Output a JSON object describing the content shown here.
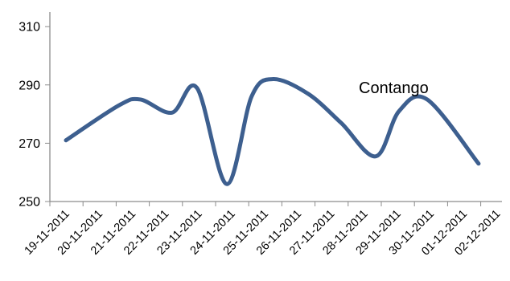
{
  "chart_data": {
    "type": "line",
    "title": "",
    "xlabel": "",
    "ylabel": "",
    "categories": [
      "19-11-2011",
      "20-11-2011",
      "21-11-2011",
      "22-11-2011",
      "23-11-2011",
      "24-11-2011",
      "25-11-2011",
      "26-11-2011",
      "27-11-2011",
      "28-11-2011",
      "29-11-2011",
      "30-11-2011",
      "01-12-2011",
      "02-12-2011"
    ],
    "ylim": [
      250,
      315
    ],
    "yticks": [
      250,
      270,
      290,
      310
    ],
    "grid": false,
    "legend": "none",
    "annotation": "Contango",
    "series_color": "#3d5f8f",
    "series": [
      {
        "points": [
          {
            "x": "19-11-2011",
            "y": 271
          },
          {
            "x": "21-11-2011",
            "y": 283
          },
          {
            "x": "21-11-2011",
            "y": 285
          },
          {
            "x": "22-11-2011",
            "y": 280.5
          },
          {
            "x": "23-11-2011",
            "y": 289
          },
          {
            "x": "24-11-2011",
            "y": 256
          },
          {
            "x": "25-11-2011",
            "y": 286
          },
          {
            "x": "26-11-2011",
            "y": 292
          },
          {
            "x": "27-11-2011",
            "y": 287
          },
          {
            "x": "28-11-2011",
            "y": 277
          },
          {
            "x": "29-11-2011",
            "y": 265.5
          },
          {
            "x": "30-11-2011",
            "y": 281
          },
          {
            "x": "01-12-2011",
            "y": 285
          },
          {
            "x": "02-12-2011",
            "y": 263
          }
        ],
        "x_positions": [
          0,
          1.6,
          2.25,
          3.2,
          3.95,
          4.85,
          5.6,
          6.25,
          7.3,
          8.3,
          9.35,
          10.05,
          10.9,
          12.45
        ]
      }
    ]
  }
}
